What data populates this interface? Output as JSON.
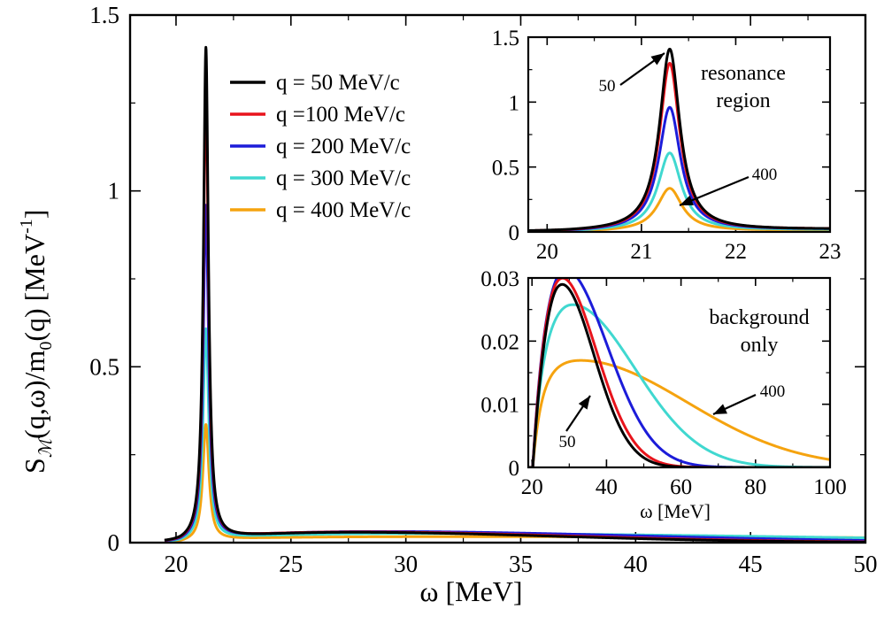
{
  "chart_data": [
    {
      "type": "line",
      "name": "main",
      "xlabel": "ω [MeV]",
      "ylabel": {
        "base": "S",
        "sub": "ℳ",
        "rest": "(q,ω)/m",
        "sub2": "0",
        "rest2": "(q)  [MeV",
        "sup": "-1",
        "close": "]"
      },
      "xlim": [
        18,
        50
      ],
      "ylim": [
        0,
        1.5
      ],
      "xticks": [
        20,
        25,
        30,
        35,
        40,
        45,
        50
      ],
      "xtick_labels": [
        "20",
        "25",
        "30",
        "35",
        "40",
        "45",
        "50"
      ],
      "yticks": [
        0,
        0.5,
        1,
        1.5
      ],
      "ytick_labels": [
        "0",
        "0.5",
        "1",
        "1.5"
      ],
      "series": [
        {
          "name": "q = 50 MeV/c",
          "color": "#000000",
          "peak": 1.4,
          "width": 0.13,
          "bg": 0.03,
          "bg_mu": 27,
          "bg_sd": 7.0
        },
        {
          "name": "q =100 MeV/c",
          "color": "#e8141c",
          "peak": 1.29,
          "width": 0.13,
          "bg": 0.031,
          "bg_mu": 27,
          "bg_sd": 7.5
        },
        {
          "name": "q = 200 MeV/c",
          "color": "#1c1cd9",
          "peak": 0.95,
          "width": 0.14,
          "bg": 0.032,
          "bg_mu": 28,
          "bg_sd": 9.0
        },
        {
          "name": "q = 300 MeV/c",
          "color": "#40d8d0",
          "peak": 0.6,
          "width": 0.15,
          "bg": 0.026,
          "bg_mu": 30,
          "bg_sd": 13.0
        },
        {
          "name": "q = 400 MeV/c",
          "color": "#f5a30f",
          "peak": 0.33,
          "width": 0.16,
          "bg": 0.017,
          "bg_mu": 32,
          "bg_sd": 22.0
        }
      ]
    },
    {
      "type": "line",
      "name": "inset-resonance",
      "annotation": [
        "resonance",
        "region"
      ],
      "xlim": [
        19.8,
        23
      ],
      "ylim": [
        0,
        1.5
      ],
      "xticks": [
        20,
        21,
        22,
        23
      ],
      "xtick_labels": [
        "20",
        "21",
        "22",
        "23"
      ],
      "yticks": [
        0,
        0.5,
        1,
        1.5
      ],
      "ytick_labels": [
        "0",
        "0.5",
        "1",
        "1.5"
      ],
      "arrow_labels": [
        "50",
        "400"
      ]
    },
    {
      "type": "line",
      "name": "inset-background",
      "annotation": [
        "background",
        "only"
      ],
      "xlabel": "ω [MeV]",
      "xlim": [
        19,
        100
      ],
      "ylim": [
        0,
        0.03
      ],
      "xticks": [
        20,
        40,
        60,
        80,
        100
      ],
      "xtick_labels": [
        "20",
        "40",
        "60",
        "80",
        "100"
      ],
      "yticks": [
        0,
        0.01,
        0.02,
        0.03
      ],
      "ytick_labels": [
        "0",
        "0.01",
        "0.02",
        "0.03"
      ],
      "arrow_labels": [
        "50",
        "400"
      ]
    }
  ]
}
